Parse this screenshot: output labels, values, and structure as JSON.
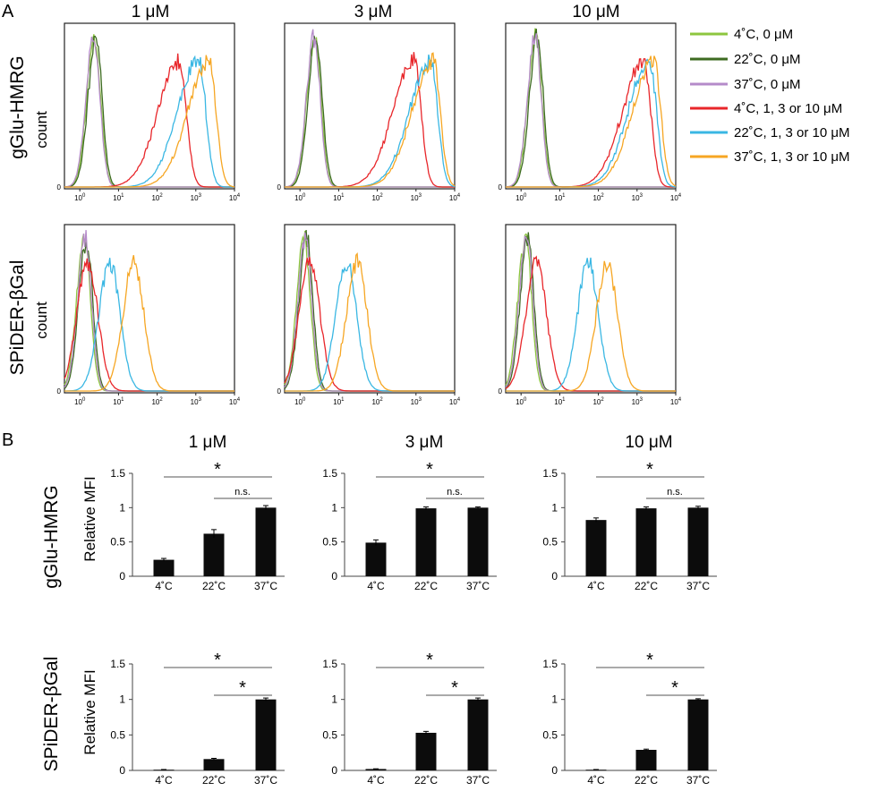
{
  "panel_A_label": "A",
  "panel_B_label": "B",
  "concentrations": [
    "1 μM",
    "3 μM",
    "10 μM"
  ],
  "probes": [
    "gGlu-HMRG",
    "SPiDER-βGal"
  ],
  "count_label": "count",
  "relative_mfi_label": "Relative MFI",
  "legend": [
    {
      "label": "4˚C, 0 μM",
      "color": "#8dc63f"
    },
    {
      "label": "22˚C, 0 μM",
      "color": "#3d6b21"
    },
    {
      "label": "37˚C, 0 μM",
      "color": "#b58bc9"
    },
    {
      "label": "4˚C, 1, 3 or 10 μM",
      "color": "#e8262a"
    },
    {
      "label": "22˚C, 1, 3 or 10 μM",
      "color": "#3ab7e3"
    },
    {
      "label": "37˚C, 1, 3 or 10 μM",
      "color": "#f6a623"
    }
  ],
  "chart_data": [
    {
      "type": "line",
      "panel": "A",
      "description_fields": "flow cytometry histograms; x axis log fluorescence, y axis count",
      "x_ticks": [
        "10^0",
        "10^1",
        "10^2",
        "10^3",
        "10^4"
      ],
      "y_ticks": [
        "0"
      ],
      "xscale": "log",
      "xlim": [
        0.4,
        10000
      ],
      "rows": [
        {
          "probe": "gGlu-HMRG",
          "panels": [
            {
              "concentration": "1 μM",
              "peaks": {
                "4C_0": 2.4,
                "22C_0": 2.6,
                "37C_0": 2.3,
                "4C_probe": 380,
                "22C_probe": 1200,
                "37C_probe": 2200
              }
            },
            {
              "concentration": "3 μM",
              "peaks": {
                "4C_0": 2.4,
                "22C_0": 2.6,
                "37C_0": 2.3,
                "4C_probe": 900,
                "22C_probe": 2400,
                "37C_probe": 2800
              }
            },
            {
              "concentration": "10 μM",
              "peaks": {
                "4C_0": 2.4,
                "22C_0": 2.6,
                "37C_0": 2.3,
                "4C_probe": 1500,
                "22C_probe": 2100,
                "37C_probe": 2700
              }
            }
          ]
        },
        {
          "probe": "SPiDER-βGal",
          "panels": [
            {
              "concentration": "1 μM",
              "peaks": {
                "4C_0": 1.3,
                "22C_0": 1.5,
                "37C_0": 1.4,
                "4C_probe": 1.6,
                "22C_probe": 6,
                "37C_probe": 25
              }
            },
            {
              "concentration": "3 μM",
              "peaks": {
                "4C_0": 1.3,
                "22C_0": 1.5,
                "37C_0": 1.4,
                "4C_probe": 1.8,
                "22C_probe": 16,
                "37C_probe": 30
              }
            },
            {
              "concentration": "10 μM",
              "peaks": {
                "4C_0": 1.3,
                "22C_0": 1.5,
                "37C_0": 1.4,
                "4C_probe": 2.5,
                "22C_probe": 55,
                "37C_probe": 170
              }
            }
          ]
        }
      ]
    },
    {
      "type": "bar",
      "panel": "B",
      "categories": [
        "4˚C",
        "22˚C",
        "37˚C"
      ],
      "ylabel": "Relative MFI",
      "ylim": [
        0,
        1.5
      ],
      "y_ticks": [
        "0",
        "0.5",
        "1",
        "1.5"
      ],
      "rows": [
        {
          "probe": "gGlu-HMRG",
          "panels": [
            {
              "concentration": "1 μM",
              "values": [
                0.24,
                0.62,
                1.0
              ],
              "errors": [
                0.02,
                0.06,
                0.03
              ],
              "sig_4_37": "*",
              "sig_22_37": "n.s."
            },
            {
              "concentration": "3 μM",
              "values": [
                0.49,
                0.99,
                1.0
              ],
              "errors": [
                0.04,
                0.02,
                0.01
              ],
              "sig_4_37": "*",
              "sig_22_37": "n.s."
            },
            {
              "concentration": "10 μM",
              "values": [
                0.82,
                0.99,
                1.0
              ],
              "errors": [
                0.03,
                0.02,
                0.02
              ],
              "sig_4_37": "*",
              "sig_22_37": "n.s."
            }
          ]
        },
        {
          "probe": "SPiDER-βGal",
          "panels": [
            {
              "concentration": "1 μM",
              "values": [
                0.01,
                0.16,
                1.0
              ],
              "errors": [
                0.003,
                0.01,
                0.02
              ],
              "sig_4_37": "*",
              "sig_22_37": "*"
            },
            {
              "concentration": "3 μM",
              "values": [
                0.02,
                0.53,
                1.0
              ],
              "errors": [
                0.003,
                0.02,
                0.02
              ],
              "sig_4_37": "*",
              "sig_22_37": "*"
            },
            {
              "concentration": "10 μM",
              "values": [
                0.01,
                0.29,
                1.0
              ],
              "errors": [
                0.003,
                0.01,
                0.01
              ],
              "sig_4_37": "*",
              "sig_22_37": "*"
            }
          ]
        }
      ]
    }
  ]
}
